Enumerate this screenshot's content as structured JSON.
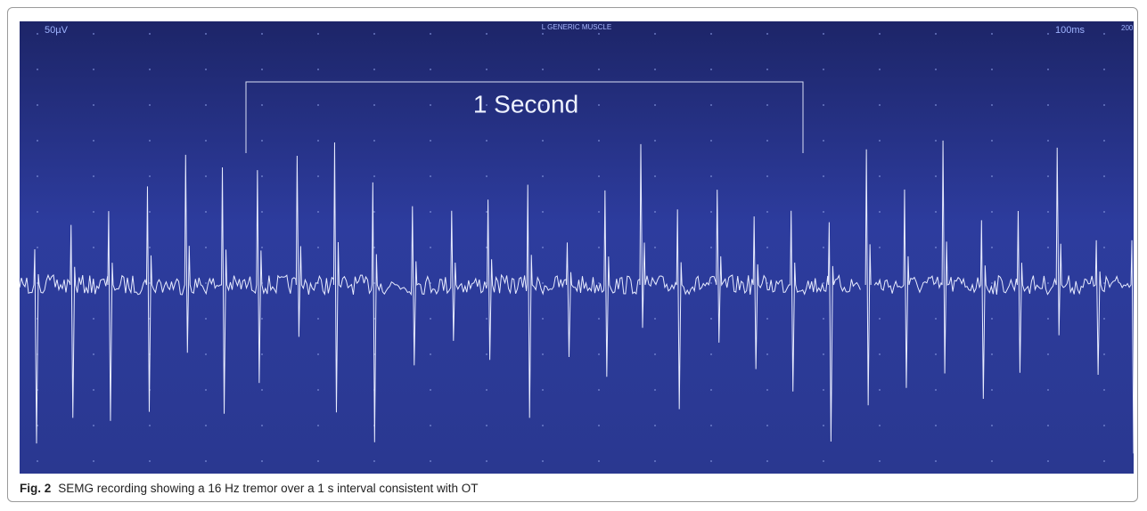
{
  "screen": {
    "gain": "50µV",
    "muscle": "L GENERIC MUSCLE",
    "timebase": "100ms",
    "timebase_next": "200",
    "interval_label": "1 Second"
  },
  "caption": {
    "label": "Fig. 2",
    "text": "SEMG recording showing a 16 Hz tremor over a 1 s interval consistent with OT"
  }
}
